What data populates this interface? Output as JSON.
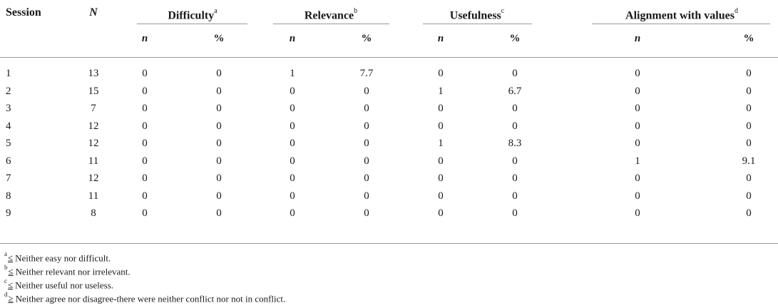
{
  "table": {
    "headers": {
      "session": "Session",
      "n_total": "N",
      "difficulty": "Difficulty",
      "difficulty_mark": "a",
      "relevance": "Relevance",
      "relevance_mark": "b",
      "usefulness": "Usefulness",
      "usefulness_mark": "c",
      "alignment": "Alignment with values",
      "alignment_mark": "d",
      "sub_n": "n",
      "sub_pct": "%"
    },
    "rows": [
      [
        "1",
        "13",
        "0",
        "0",
        "1",
        "7.7",
        "0",
        "0",
        "0",
        "0"
      ],
      [
        "2",
        "15",
        "0",
        "0",
        "0",
        "0",
        "1",
        "6.7",
        "0",
        "0"
      ],
      [
        "3",
        "7",
        "0",
        "0",
        "0",
        "0",
        "0",
        "0",
        "0",
        "0"
      ],
      [
        "4",
        "12",
        "0",
        "0",
        "0",
        "0",
        "0",
        "0",
        "0",
        "0"
      ],
      [
        "5",
        "12",
        "0",
        "0",
        "0",
        "0",
        "1",
        "8.3",
        "0",
        "0"
      ],
      [
        "6",
        "11",
        "0",
        "0",
        "0",
        "0",
        "0",
        "0",
        "1",
        "9.1"
      ],
      [
        "7",
        "12",
        "0",
        "0",
        "0",
        "0",
        "0",
        "0",
        "0",
        "0"
      ],
      [
        "8",
        "11",
        "0",
        "0",
        "0",
        "0",
        "0",
        "0",
        "0",
        "0"
      ],
      [
        "9",
        "8",
        "0",
        "0",
        "0",
        "0",
        "0",
        "0",
        "0",
        "0"
      ]
    ]
  },
  "footnotes": [
    {
      "mark": "a",
      "symbol": "≤",
      "text": "Neither easy nor difficult."
    },
    {
      "mark": "b",
      "symbol": "≤",
      "text": "Neither relevant nor irrelevant."
    },
    {
      "mark": "c",
      "symbol": "≤",
      "text": "Neither useful nor useless."
    },
    {
      "mark": "d",
      "symbol": "≥",
      "text": "Neither agree nor disagree-there were neither conflict nor not in conflict."
    }
  ]
}
